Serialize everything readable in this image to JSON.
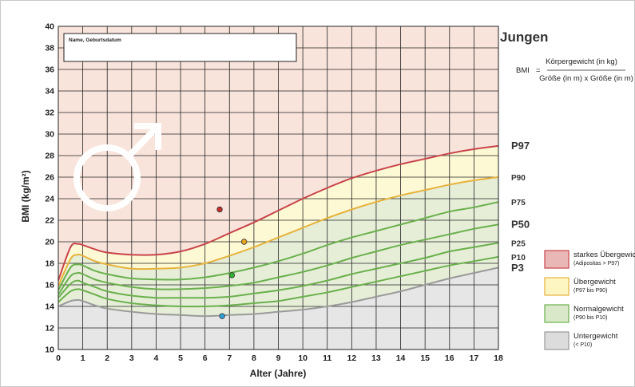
{
  "title": "Jungen",
  "formula": {
    "lhs": "BMI",
    "equals": "=",
    "numerator": "Körpergewicht (in kg)",
    "denominator": "Größe (in m) x Größe (in m)"
  },
  "name_box_label": "Name, Geburtsdatum",
  "male_symbol": "male-symbol-icon",
  "colors": {
    "overweight_strong_bg": "#f9e4dc",
    "overweight_bg": "#fdf9d4",
    "normal_bg": "#e6eed8",
    "underweight_bg": "#e6e6e6",
    "p97_line": "#c8444a",
    "p90_line": "#e6b23c",
    "normal_lines": "#6ab04c",
    "p3_line": "#9a9a9a",
    "grid": "#222222"
  },
  "legend": [
    {
      "key": "strong",
      "label": "starkes Übergewicht",
      "sub": "(Adipositas > P97)",
      "color": "#e9b8b6",
      "border": "#c8444a"
    },
    {
      "key": "over",
      "label": "Übergewicht",
      "sub": "(P97 bis P90)",
      "color": "#fdf6c2",
      "border": "#e6b23c"
    },
    {
      "key": "normal",
      "label": "Normalgewicht",
      "sub": "(P90 bis P10)",
      "color": "#d9e8c8",
      "border": "#6ab04c"
    },
    {
      "key": "under",
      "label": "Untergewicht",
      "sub": "(< P10)",
      "color": "#dcdcdc",
      "border": "#9a9a9a"
    }
  ],
  "chart_data": {
    "type": "line",
    "xlabel": "Alter (Jahre)",
    "ylabel": "BMI (kg/m²)",
    "xlim": [
      0,
      18
    ],
    "ylim": [
      10,
      40
    ],
    "x_ticks": [
      0,
      1,
      2,
      3,
      4,
      5,
      6,
      7,
      8,
      9,
      10,
      11,
      12,
      13,
      14,
      15,
      16,
      17,
      18
    ],
    "y_ticks": [
      10,
      12,
      14,
      16,
      18,
      20,
      22,
      24,
      26,
      28,
      30,
      32,
      34,
      36,
      38,
      40
    ],
    "grid": true,
    "x": [
      0,
      0.5,
      0.8,
      1,
      1.5,
      2,
      3,
      4,
      5,
      6,
      7,
      8,
      9,
      10,
      11,
      12,
      13,
      14,
      15,
      16,
      17,
      18
    ],
    "series": [
      {
        "name": "P97",
        "label_size": "big",
        "color": "#c8444a",
        "values": [
          16.4,
          19.5,
          19.8,
          19.7,
          19.3,
          19.0,
          18.8,
          18.8,
          19.1,
          19.8,
          20.8,
          21.8,
          22.9,
          24.0,
          25.0,
          25.9,
          26.6,
          27.2,
          27.7,
          28.2,
          28.6,
          28.9
        ]
      },
      {
        "name": "P90",
        "label_size": "small",
        "color": "#e6b23c",
        "values": [
          15.9,
          18.4,
          18.8,
          18.7,
          18.2,
          17.9,
          17.5,
          17.5,
          17.6,
          18.0,
          18.7,
          19.5,
          20.4,
          21.3,
          22.2,
          23.0,
          23.7,
          24.3,
          24.8,
          25.3,
          25.7,
          26.0
        ]
      },
      {
        "name": "P75",
        "label_size": "small",
        "color": "#6ab04c",
        "values": [
          15.5,
          17.6,
          17.9,
          17.8,
          17.3,
          17.0,
          16.6,
          16.5,
          16.5,
          16.7,
          17.1,
          17.6,
          18.2,
          18.9,
          19.7,
          20.4,
          21.0,
          21.6,
          22.2,
          22.8,
          23.2,
          23.7
        ]
      },
      {
        "name": "P50",
        "label_size": "big",
        "color": "#6ab04c",
        "values": [
          15.1,
          16.8,
          17.1,
          17.0,
          16.5,
          16.2,
          15.8,
          15.6,
          15.6,
          15.7,
          15.9,
          16.2,
          16.7,
          17.2,
          17.8,
          18.5,
          19.1,
          19.7,
          20.2,
          20.7,
          21.2,
          21.6
        ]
      },
      {
        "name": "P25",
        "label_size": "small",
        "color": "#6ab04c",
        "values": [
          14.8,
          16.1,
          16.4,
          16.2,
          15.8,
          15.4,
          15.0,
          14.8,
          14.8,
          14.8,
          14.9,
          15.2,
          15.5,
          15.9,
          16.4,
          17.0,
          17.5,
          18.0,
          18.5,
          19.1,
          19.5,
          19.9
        ]
      },
      {
        "name": "P10",
        "label_size": "small",
        "color": "#6ab04c",
        "values": [
          14.4,
          15.4,
          15.6,
          15.5,
          15.1,
          14.7,
          14.3,
          14.1,
          14.0,
          14.0,
          14.1,
          14.3,
          14.5,
          14.9,
          15.3,
          15.8,
          16.3,
          16.8,
          17.3,
          17.8,
          18.2,
          18.6
        ]
      },
      {
        "name": "P3",
        "label_size": "big",
        "color": "#9a9a9a",
        "values": [
          14.0,
          14.5,
          14.6,
          14.5,
          14.1,
          13.8,
          13.5,
          13.3,
          13.2,
          13.1,
          13.2,
          13.3,
          13.5,
          13.7,
          14.0,
          14.4,
          14.9,
          15.4,
          16.0,
          16.6,
          17.1,
          17.6
        ]
      }
    ],
    "points": [
      {
        "x": 6.6,
        "y": 23.0,
        "color": "#c62f2a"
      },
      {
        "x": 7.6,
        "y": 20.0,
        "color": "#e8a81e"
      },
      {
        "x": 7.1,
        "y": 16.9,
        "color": "#2db32d"
      },
      {
        "x": 6.7,
        "y": 13.1,
        "color": "#2f9fd6"
      }
    ]
  }
}
